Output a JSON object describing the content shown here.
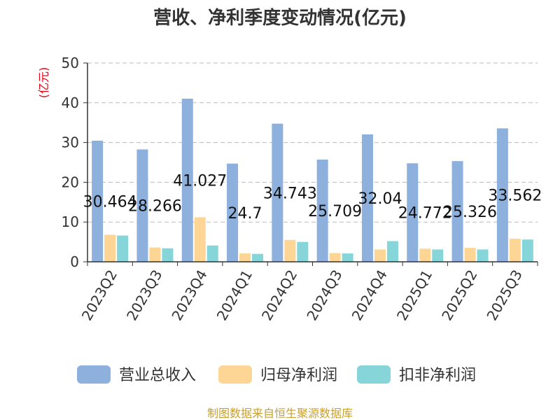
{
  "chart_data": {
    "type": "bar",
    "title": "营收、净利季度变动情况(亿元)",
    "ylabel": "(亿元)",
    "ylim": [
      0,
      50
    ],
    "yticks": [
      0,
      10,
      20,
      30,
      40,
      50
    ],
    "grid": true,
    "legend_position": "bottom",
    "categories": [
      "2023Q2",
      "2023Q3",
      "2023Q4",
      "2024Q1",
      "2024Q2",
      "2024Q3",
      "2024Q4",
      "2025Q1",
      "2025Q2",
      "2025Q3"
    ],
    "series": [
      {
        "name": "营业总收入",
        "color": "#8eb0dd",
        "values": [
          30.464,
          28.266,
          41.027,
          24.7,
          34.743,
          25.709,
          32.04,
          24.772,
          25.326,
          33.562
        ],
        "labels": [
          "30.464",
          "28.266",
          "41.027",
          "24.7",
          "34.743",
          "25.709",
          "32.04",
          "24.772",
          "25.326",
          "33.562"
        ]
      },
      {
        "name": "归母净利润",
        "color": "#fdd594",
        "values": [
          6.8,
          3.6,
          11.2,
          2.1,
          5.5,
          2.2,
          3.1,
          3.3,
          3.5,
          5.8
        ]
      },
      {
        "name": "扣非净利润",
        "color": "#86d5d9",
        "values": [
          6.6,
          3.4,
          4.1,
          2.0,
          5.0,
          2.1,
          5.2,
          3.1,
          3.1,
          5.6
        ]
      }
    ],
    "source": "制图数据来自恒生聚源数据库"
  }
}
